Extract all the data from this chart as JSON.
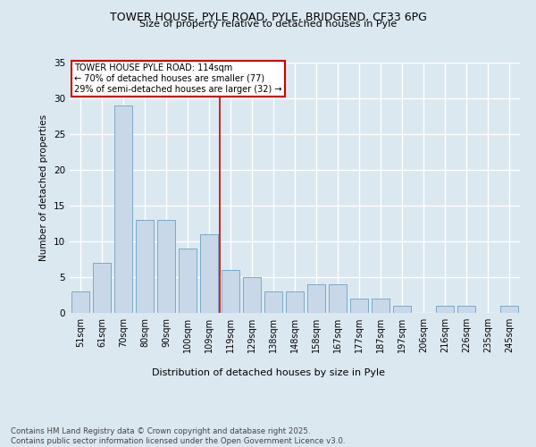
{
  "title_line1": "TOWER HOUSE, PYLE ROAD, PYLE, BRIDGEND, CF33 6PG",
  "title_line2": "Size of property relative to detached houses in Pyle",
  "categories": [
    "51sqm",
    "61sqm",
    "70sqm",
    "80sqm",
    "90sqm",
    "100sqm",
    "109sqm",
    "119sqm",
    "129sqm",
    "138sqm",
    "148sqm",
    "158sqm",
    "167sqm",
    "177sqm",
    "187sqm",
    "197sqm",
    "206sqm",
    "216sqm",
    "226sqm",
    "235sqm",
    "245sqm"
  ],
  "values": [
    3,
    7,
    29,
    13,
    13,
    9,
    11,
    6,
    5,
    3,
    3,
    4,
    4,
    2,
    2,
    1,
    0,
    1,
    1,
    0,
    1
  ],
  "bar_color": "#c8d8e8",
  "bar_edge_color": "#7aaac8",
  "ylabel": "Number of detached properties",
  "xlabel": "Distribution of detached houses by size in Pyle",
  "ylim": [
    0,
    35
  ],
  "yticks": [
    0,
    5,
    10,
    15,
    20,
    25,
    30,
    35
  ],
  "ref_line_index": 6.5,
  "ref_line_color": "#cc0000",
  "annotation_text": "TOWER HOUSE PYLE ROAD: 114sqm\n← 70% of detached houses are smaller (77)\n29% of semi-detached houses are larger (32) →",
  "annotation_box_color": "#ffffff",
  "annotation_box_edge": "#cc0000",
  "footer_text": "Contains HM Land Registry data © Crown copyright and database right 2025.\nContains public sector information licensed under the Open Government Licence v3.0.",
  "bg_color": "#dce8f0",
  "plot_bg_color": "#dce8f0",
  "grid_color": "#ffffff"
}
